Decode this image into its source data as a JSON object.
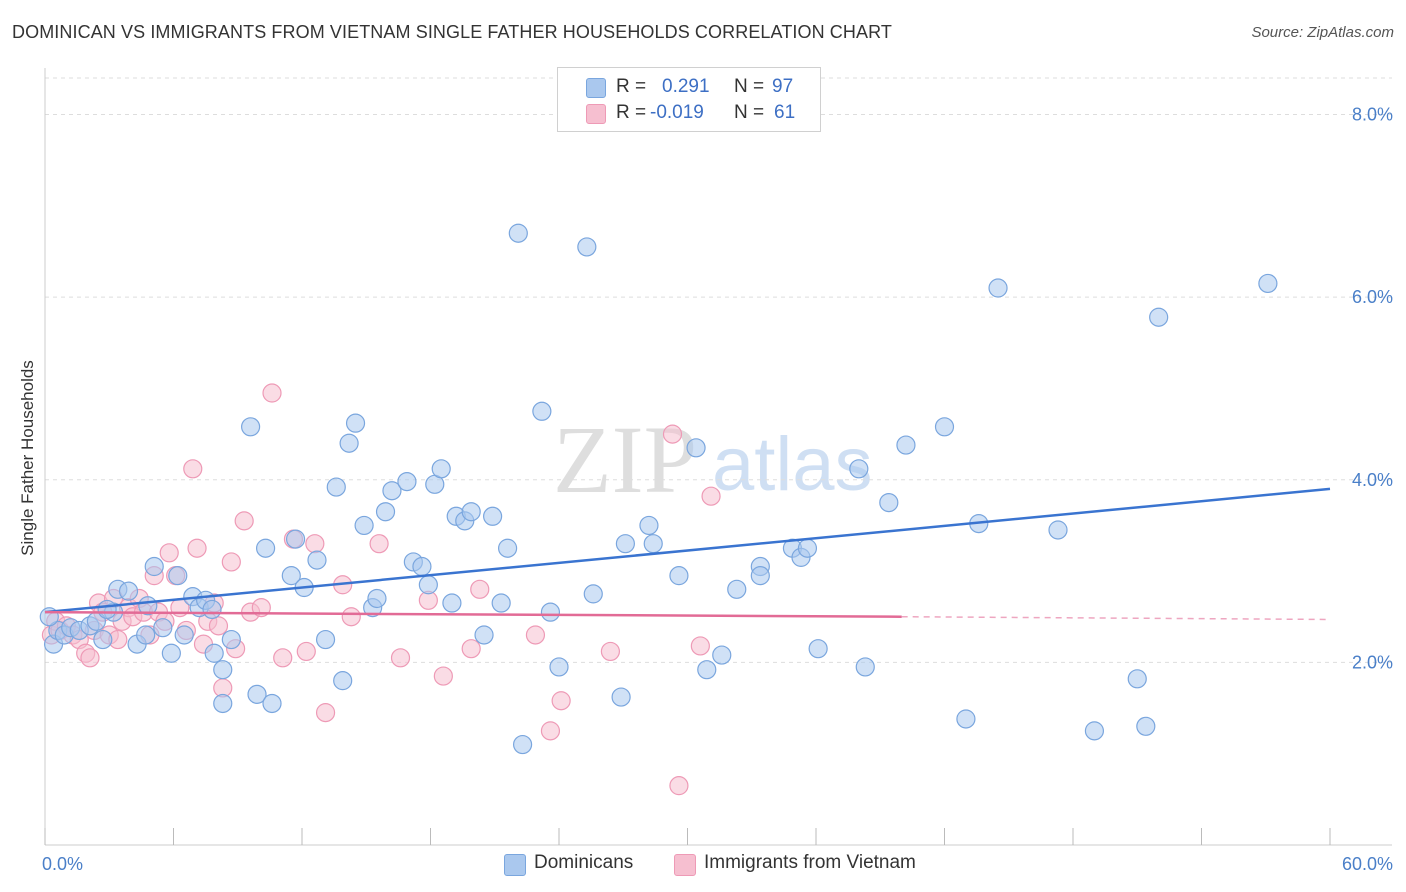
{
  "header": {
    "title": "DOMINICAN VS IMMIGRANTS FROM VIETNAM SINGLE FATHER HOUSEHOLDS CORRELATION CHART",
    "source": "Source: ZipAtlas.com"
  },
  "watermark": {
    "zip": "ZIP",
    "atlas": "atlas"
  },
  "legend_top": {
    "rows": [
      {
        "r_label": "R =",
        "r_value": "0.291",
        "n_label": "N =",
        "n_value": "97"
      },
      {
        "r_label": "R =",
        "r_value": "-0.019",
        "n_label": "N =",
        "n_value": "61"
      }
    ]
  },
  "legend_bottom": {
    "items": [
      "Dominicans",
      "Immigrants from Vietnam"
    ]
  },
  "colors": {
    "blue_fill": "#aac8ee",
    "blue_stroke": "#7aa6de",
    "blue_line": "#3a74d0",
    "pink_fill": "#f6bfd0",
    "pink_stroke": "#ee9ab6",
    "pink_line": "#e26b96",
    "tick_text": "#4a7fc8",
    "grid": "#dddddd"
  },
  "chart_data": {
    "type": "scatter",
    "title": "DOMINICAN VS IMMIGRANTS FROM VIETNAM SINGLE FATHER HOUSEHOLDS CORRELATION CHART",
    "xlabel": "",
    "ylabel": "Single Father Households",
    "xlim": [
      0,
      60
    ],
    "ylim": [
      0,
      8.4
    ],
    "x_tick_labels": [
      "0.0%",
      "60.0%"
    ],
    "y_ticks": [
      2,
      4,
      6,
      8
    ],
    "y_tick_labels": [
      "2.0%",
      "4.0%",
      "6.0%",
      "8.0%"
    ],
    "grid": true,
    "legend_position": "top-center",
    "series": [
      {
        "name": "Dominicans",
        "color": "#aac8ee",
        "r": 0.291,
        "n": 97,
        "trend": {
          "x": [
            0,
            60
          ],
          "y": [
            2.55,
            3.9
          ],
          "dashed_from": null
        },
        "points": [
          [
            0.4,
            2.2
          ],
          [
            0.6,
            2.35
          ],
          [
            0.9,
            2.3
          ],
          [
            1.2,
            2.38
          ],
          [
            1.6,
            2.35
          ],
          [
            2.1,
            2.4
          ],
          [
            2.4,
            2.45
          ],
          [
            2.7,
            2.25
          ],
          [
            3.2,
            2.55
          ],
          [
            3.4,
            2.8
          ],
          [
            3.9,
            2.78
          ],
          [
            4.3,
            2.2
          ],
          [
            4.7,
            2.3
          ],
          [
            5.1,
            3.05
          ],
          [
            5.5,
            2.38
          ],
          [
            5.9,
            2.1
          ],
          [
            6.2,
            2.95
          ],
          [
            6.5,
            2.3
          ],
          [
            6.9,
            2.72
          ],
          [
            7.2,
            2.6
          ],
          [
            7.5,
            2.68
          ],
          [
            7.9,
            2.1
          ],
          [
            8.3,
            1.92
          ],
          [
            8.7,
            2.25
          ],
          [
            8.3,
            1.55
          ],
          [
            9.6,
            4.58
          ],
          [
            9.9,
            1.65
          ],
          [
            10.3,
            3.25
          ],
          [
            10.6,
            1.55
          ],
          [
            11.5,
            2.95
          ],
          [
            11.7,
            3.35
          ],
          [
            12.1,
            2.82
          ],
          [
            12.7,
            3.12
          ],
          [
            13.1,
            2.25
          ],
          [
            13.6,
            3.92
          ],
          [
            13.9,
            1.8
          ],
          [
            14.2,
            4.4
          ],
          [
            14.5,
            4.62
          ],
          [
            14.9,
            3.5
          ],
          [
            15.3,
            2.6
          ],
          [
            15.5,
            2.7
          ],
          [
            15.9,
            3.65
          ],
          [
            16.2,
            3.88
          ],
          [
            16.9,
            3.98
          ],
          [
            17.2,
            3.1
          ],
          [
            17.6,
            3.05
          ],
          [
            17.9,
            2.85
          ],
          [
            18.2,
            3.95
          ],
          [
            18.5,
            4.12
          ],
          [
            19.0,
            2.65
          ],
          [
            19.2,
            3.6
          ],
          [
            19.6,
            3.55
          ],
          [
            19.9,
            3.65
          ],
          [
            20.5,
            2.3
          ],
          [
            20.9,
            3.6
          ],
          [
            21.3,
            2.65
          ],
          [
            21.6,
            3.25
          ],
          [
            22.1,
            6.7
          ],
          [
            22.3,
            1.1
          ],
          [
            23.2,
            4.75
          ],
          [
            23.6,
            2.55
          ],
          [
            24.0,
            1.95
          ],
          [
            25.3,
            6.55
          ],
          [
            25.6,
            2.75
          ],
          [
            26.9,
            1.62
          ],
          [
            27.1,
            3.3
          ],
          [
            28.2,
            3.5
          ],
          [
            28.4,
            3.3
          ],
          [
            29.6,
            2.95
          ],
          [
            30.4,
            4.35
          ],
          [
            30.9,
            1.92
          ],
          [
            31.6,
            2.08
          ],
          [
            32.3,
            2.8
          ],
          [
            33.4,
            3.05
          ],
          [
            33.4,
            2.95
          ],
          [
            34.9,
            3.25
          ],
          [
            35.3,
            3.15
          ],
          [
            35.6,
            3.25
          ],
          [
            36.1,
            2.15
          ],
          [
            38.0,
            4.12
          ],
          [
            38.3,
            1.95
          ],
          [
            39.4,
            3.75
          ],
          [
            40.2,
            4.38
          ],
          [
            42.0,
            4.58
          ],
          [
            43.0,
            1.38
          ],
          [
            43.6,
            3.52
          ],
          [
            44.5,
            6.1
          ],
          [
            47.3,
            3.45
          ],
          [
            49.0,
            1.25
          ],
          [
            51.0,
            1.82
          ],
          [
            51.4,
            1.3
          ],
          [
            52.0,
            5.78
          ],
          [
            57.1,
            6.15
          ],
          [
            0.2,
            2.5
          ],
          [
            2.9,
            2.58
          ],
          [
            4.8,
            2.62
          ],
          [
            7.8,
            2.58
          ]
        ]
      },
      {
        "name": "Immigrants from Vietnam",
        "color": "#f6bfd0",
        "r": -0.019,
        "n": 61,
        "trend": {
          "x": [
            0,
            40
          ],
          "y": [
            2.55,
            2.5
          ],
          "dashed_to": [
            60,
            2.47
          ]
        },
        "points": [
          [
            0.3,
            2.3
          ],
          [
            0.5,
            2.45
          ],
          [
            0.7,
            2.35
          ],
          [
            1.0,
            2.4
          ],
          [
            1.3,
            2.3
          ],
          [
            1.6,
            2.25
          ],
          [
            1.9,
            2.1
          ],
          [
            2.1,
            2.05
          ],
          [
            2.3,
            2.35
          ],
          [
            2.5,
            2.65
          ],
          [
            2.7,
            2.55
          ],
          [
            3.0,
            2.3
          ],
          [
            3.2,
            2.7
          ],
          [
            3.4,
            2.25
          ],
          [
            3.6,
            2.45
          ],
          [
            3.9,
            2.6
          ],
          [
            4.1,
            2.5
          ],
          [
            4.4,
            2.7
          ],
          [
            4.6,
            2.55
          ],
          [
            4.9,
            2.3
          ],
          [
            5.1,
            2.95
          ],
          [
            5.3,
            2.55
          ],
          [
            5.6,
            2.45
          ],
          [
            5.8,
            3.2
          ],
          [
            6.1,
            2.95
          ],
          [
            6.3,
            2.6
          ],
          [
            6.6,
            2.35
          ],
          [
            6.9,
            4.12
          ],
          [
            7.1,
            3.25
          ],
          [
            7.4,
            2.2
          ],
          [
            7.6,
            2.45
          ],
          [
            7.9,
            2.65
          ],
          [
            8.1,
            2.4
          ],
          [
            8.3,
            1.72
          ],
          [
            8.7,
            3.1
          ],
          [
            8.9,
            2.15
          ],
          [
            9.3,
            3.55
          ],
          [
            9.6,
            2.55
          ],
          [
            10.1,
            2.6
          ],
          [
            10.6,
            4.95
          ],
          [
            11.1,
            2.05
          ],
          [
            11.6,
            3.35
          ],
          [
            12.2,
            2.12
          ],
          [
            12.6,
            3.3
          ],
          [
            13.1,
            1.45
          ],
          [
            13.9,
            2.85
          ],
          [
            14.3,
            2.5
          ],
          [
            15.6,
            3.3
          ],
          [
            16.6,
            2.05
          ],
          [
            17.9,
            2.68
          ],
          [
            18.6,
            1.85
          ],
          [
            19.9,
            2.15
          ],
          [
            20.3,
            2.8
          ],
          [
            22.9,
            2.3
          ],
          [
            23.6,
            1.25
          ],
          [
            24.1,
            1.58
          ],
          [
            26.4,
            2.12
          ],
          [
            29.3,
            4.5
          ],
          [
            29.6,
            0.65
          ],
          [
            30.6,
            2.18
          ],
          [
            31.1,
            3.82
          ]
        ]
      }
    ]
  }
}
